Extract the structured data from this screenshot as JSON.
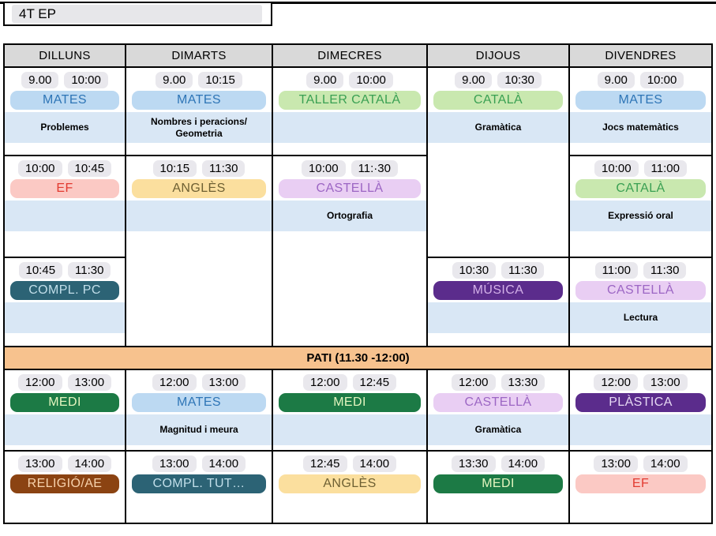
{
  "page": {
    "title": "4T EP"
  },
  "pati": {
    "label": "PATI (11.30 -12:00)"
  },
  "colors": {
    "grid_border": "#000000",
    "header_bg": "#D9D9D9",
    "band_bg": "#D9E7F5",
    "time_pill_bg": "#E9E8ED",
    "pati_bg": "#F7C28E",
    "title_pill_bg": "#E7E7EA"
  },
  "subject_styles": {
    "mates": {
      "bg": "#BCD9F2",
      "fg": "#2E75B6"
    },
    "catala": {
      "bg": "#C9E8AF",
      "fg": "#3AA053"
    },
    "ef": {
      "bg": "#FBC9C4",
      "fg": "#E23A30"
    },
    "angles": {
      "bg": "#FBDF9E",
      "fg": "#6E6033"
    },
    "castella": {
      "bg": "#E9CEF3",
      "fg": "#9C66C4"
    },
    "compl": {
      "bg": "#2C6375",
      "fg": "#C2DFEA"
    },
    "musica": {
      "bg": "#5B2C8C",
      "fg": "#D3B0E8"
    },
    "medi": {
      "bg": "#1C7A45",
      "fg": "#E4F5BF"
    },
    "religio": {
      "bg": "#8B4312",
      "fg": "#F7D2AC"
    },
    "plastica": {
      "bg": "#5B2C8C",
      "fg": "#E6D8F3"
    }
  },
  "days": [
    {
      "name": "DILLUNS",
      "top": [
        {
          "span": 1,
          "start": "9.00",
          "end": "10:00",
          "subject": "MATES",
          "style": "mates",
          "topic": "Problemes",
          "band": true
        },
        {
          "span": 1,
          "start": "10:00",
          "end": "10:45",
          "subject": "EF",
          "style": "ef",
          "topic": "",
          "band": true
        },
        {
          "span": 1,
          "start": "10:45",
          "end": "11:30",
          "subject": "COMPL. PC",
          "style": "compl",
          "topic": "",
          "band": true
        }
      ],
      "bottom": [
        {
          "span": 1,
          "start": "12:00",
          "end": "13:00",
          "subject": "MEDI",
          "style": "medi",
          "topic": "",
          "band": true
        },
        {
          "span": 1,
          "start": "13:00",
          "end": "14:00",
          "subject": "RELIGIÓ/AE",
          "style": "religio",
          "band": false
        }
      ]
    },
    {
      "name": "DIMARTS",
      "top": [
        {
          "span": 1,
          "start": "9.00",
          "end": "10:15",
          "subject": "MATES",
          "style": "mates",
          "topic": "Nombres i peracions/ Geometria",
          "band": true
        },
        {
          "span": 2,
          "start": "10:15",
          "end": "11:30",
          "subject": "ANGLÈS",
          "style": "angles",
          "topic": "",
          "band": true
        }
      ],
      "bottom": [
        {
          "span": 1,
          "start": "12:00",
          "end": "13:00",
          "subject": "MATES",
          "style": "mates",
          "topic": "Magnitud i meura",
          "band": true
        },
        {
          "span": 1,
          "start": "13:00",
          "end": "14:00",
          "subject": "COMPL. TUT…",
          "style": "compl",
          "band": false
        }
      ]
    },
    {
      "name": "DIMECRES",
      "top": [
        {
          "span": 1,
          "start": "9.00",
          "end": "10:00",
          "subject": "TALLER CATALÀ",
          "style": "catala",
          "topic": "",
          "band": true
        },
        {
          "span": 2,
          "start": "10:00",
          "end": "11:·30",
          "subject": "CASTELLÀ",
          "style": "castella",
          "topic": "Ortografia",
          "band": true
        }
      ],
      "bottom": [
        {
          "span": 1,
          "start": "12:00",
          "end": "12:45",
          "subject": "MEDI",
          "style": "medi",
          "topic": "",
          "band": true
        },
        {
          "span": 1,
          "start": "12:45",
          "end": "14:00",
          "subject": "ANGLÈS",
          "style": "angles",
          "band": false
        }
      ]
    },
    {
      "name": "DIJOUS",
      "top": [
        {
          "span": 2,
          "start": "9.00",
          "end": "10:30",
          "subject": "CATALÀ",
          "style": "catala",
          "topic": "Gramàtica",
          "band": true
        },
        {
          "span": 1,
          "start": "10:30",
          "end": "11:30",
          "subject": "MÚSICA",
          "style": "musica",
          "topic": "",
          "band": true
        }
      ],
      "bottom": [
        {
          "span": 1,
          "start": "12:00",
          "end": "13:30",
          "subject": "CASTELLÀ",
          "style": "castella",
          "topic": "Gramàtica",
          "band": true
        },
        {
          "span": 1,
          "start": "13:30",
          "end": "14:00",
          "subject": "MEDI",
          "style": "medi",
          "band": false
        }
      ]
    },
    {
      "name": "DIVENDRES",
      "top": [
        {
          "span": 1,
          "start": "9.00",
          "end": "10:00",
          "subject": "MATES",
          "style": "mates",
          "topic": "Jocs matemàtics",
          "band": true
        },
        {
          "span": 1,
          "start": "10:00",
          "end": "11:00",
          "subject": "CATALÀ",
          "style": "catala",
          "topic": "Expressió oral",
          "band": true
        },
        {
          "span": 1,
          "start": "11:00",
          "end": "11:30",
          "subject": "CASTELLÀ",
          "style": "castella",
          "topic": "Lectura",
          "band": true
        }
      ],
      "bottom": [
        {
          "span": 1,
          "start": "12:00",
          "end": "13:00",
          "subject": "PLÀSTICA",
          "style": "plastica",
          "topic": "",
          "band": true
        },
        {
          "span": 1,
          "start": "13:00",
          "end": "14:00",
          "subject": "EF",
          "style": "ef",
          "band": false
        }
      ]
    }
  ]
}
